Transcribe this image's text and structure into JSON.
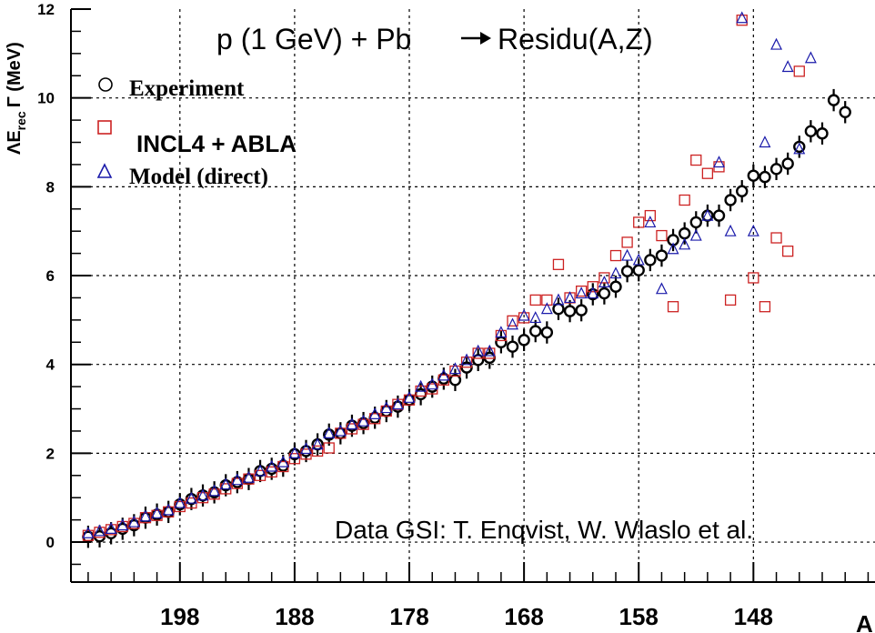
{
  "chart_data": {
    "type": "scatter",
    "title": "p (1 GeV) + Pb",
    "title_arrow": "→",
    "title_tail": "Residu(A,Z)",
    "xlabel": "A",
    "ylabel": "ΛE",
    "ylabel_sub": "rec",
    "ylabel_tail": "Γ (MeV)",
    "x_reversed": true,
    "xlim": [
      207.5,
      137.4
    ],
    "ylim": [
      -0.9,
      12
    ],
    "x_ticks": [
      198,
      188,
      178,
      168,
      158,
      148
    ],
    "y_ticks": [
      0,
      2,
      4,
      6,
      8,
      10,
      12
    ],
    "grid": true,
    "annotation": "Data GSI: T. Enqvist, W. Wlaslo et al.",
    "legend_position": "top-left",
    "series": [
      {
        "name": "Experiment",
        "marker": "circle",
        "color": "#000000",
        "x": [
          206,
          205,
          204,
          203,
          202,
          201,
          200,
          199,
          198,
          197,
          196,
          195,
          194,
          193,
          192,
          191,
          190,
          189,
          188,
          187,
          186,
          185,
          184,
          183,
          182,
          181,
          180,
          179,
          178,
          177,
          176,
          175,
          174,
          173,
          172,
          171,
          170,
          169,
          168,
          167,
          166,
          165,
          164,
          163,
          162,
          161,
          160,
          159,
          158,
          157,
          156,
          155,
          154,
          153,
          152,
          151,
          150,
          149,
          148,
          147,
          146,
          145,
          144,
          143,
          142,
          141
        ],
        "y": [
          0.12,
          0.13,
          0.2,
          0.3,
          0.38,
          0.55,
          0.62,
          0.68,
          0.85,
          0.97,
          1.05,
          1.12,
          1.28,
          1.35,
          1.42,
          1.6,
          1.65,
          1.72,
          1.98,
          2.05,
          2.2,
          2.42,
          2.45,
          2.62,
          2.68,
          2.8,
          2.95,
          3.05,
          3.2,
          3.33,
          3.5,
          3.68,
          3.65,
          3.93,
          4.1,
          4.15,
          4.5,
          4.4,
          4.55,
          4.75,
          4.72,
          5.25,
          5.2,
          5.22,
          5.58,
          5.6,
          5.75,
          6.1,
          6.12,
          6.35,
          6.45,
          6.8,
          6.95,
          7.2,
          7.35,
          7.35,
          7.7,
          7.9,
          8.25,
          8.22,
          8.4,
          8.52,
          8.9,
          9.25,
          9.2,
          9.95
        ],
        "y_extra": [
          {
            "x": 140,
            "y": 9.68
          }
        ],
        "error": 0.25
      },
      {
        "name": "INCL4 + ABLA",
        "marker": "square",
        "color": "#cc2222",
        "x": [
          206,
          205,
          204,
          203,
          202,
          201,
          200,
          199,
          198,
          197,
          196,
          195,
          194,
          193,
          192,
          191,
          190,
          189,
          188,
          187,
          186,
          185,
          184,
          183,
          182,
          181,
          180,
          179,
          178,
          177,
          176,
          175,
          174,
          173,
          172,
          171,
          170,
          169,
          168,
          167,
          166,
          165,
          164,
          163,
          162,
          161,
          160,
          159,
          158,
          157,
          156,
          155,
          154,
          153,
          152,
          151,
          150,
          149,
          148,
          147,
          146,
          145,
          144
        ],
        "y": [
          0.15,
          0.22,
          0.28,
          0.35,
          0.42,
          0.55,
          0.6,
          0.68,
          0.8,
          0.88,
          1.0,
          1.08,
          1.2,
          1.32,
          1.42,
          1.5,
          1.58,
          1.7,
          1.88,
          1.98,
          2.05,
          2.12,
          2.45,
          2.55,
          2.65,
          2.78,
          2.95,
          3.1,
          3.2,
          3.4,
          3.45,
          3.65,
          3.85,
          4.05,
          4.25,
          4.25,
          4.65,
          4.98,
          5.05,
          5.45,
          5.45,
          6.25,
          5.5,
          5.65,
          5.75,
          5.95,
          6.45,
          6.75,
          7.2,
          7.35,
          6.9,
          5.3,
          7.7,
          8.6,
          8.3,
          8.45,
          5.45,
          11.75,
          5.95,
          5.3,
          6.85,
          6.55,
          10.6
        ],
        "error": 0
      },
      {
        "name": "Model (direct)",
        "marker": "triangle",
        "color": "#1a1aaa",
        "x": [
          206,
          205,
          204,
          203,
          202,
          201,
          200,
          199,
          198,
          197,
          196,
          195,
          194,
          193,
          192,
          191,
          190,
          189,
          188,
          187,
          186,
          185,
          184,
          183,
          182,
          181,
          180,
          179,
          178,
          177,
          176,
          175,
          174,
          173,
          172,
          171,
          170,
          169,
          168,
          167,
          166,
          165,
          164,
          163,
          162,
          161,
          160,
          159,
          158,
          157,
          156,
          155,
          154,
          153,
          152,
          151,
          150,
          149,
          148,
          147,
          146,
          145,
          144,
          143,
          142,
          141
        ],
        "y": [
          0.2,
          0.25,
          0.3,
          0.38,
          0.45,
          0.58,
          0.65,
          0.72,
          0.88,
          0.98,
          1.05,
          1.15,
          1.3,
          1.4,
          1.45,
          1.6,
          1.7,
          1.8,
          2.0,
          2.1,
          2.2,
          2.45,
          2.5,
          2.65,
          2.72,
          2.88,
          3.02,
          3.1,
          3.25,
          3.5,
          3.55,
          3.75,
          3.9,
          4.1,
          4.3,
          4.3,
          4.72,
          4.9,
          5.1,
          5.05,
          5.25,
          5.45,
          5.5,
          5.6,
          5.6,
          5.85,
          6.05,
          6.45,
          6.35,
          7.2,
          5.7,
          6.6,
          6.7,
          6.9,
          7.35,
          8.55,
          7.0,
          11.8,
          7.0,
          9.0,
          11.2,
          10.7,
          8.85,
          10.9,
          0,
          0
        ],
        "y_trim": 64
      }
    ]
  }
}
